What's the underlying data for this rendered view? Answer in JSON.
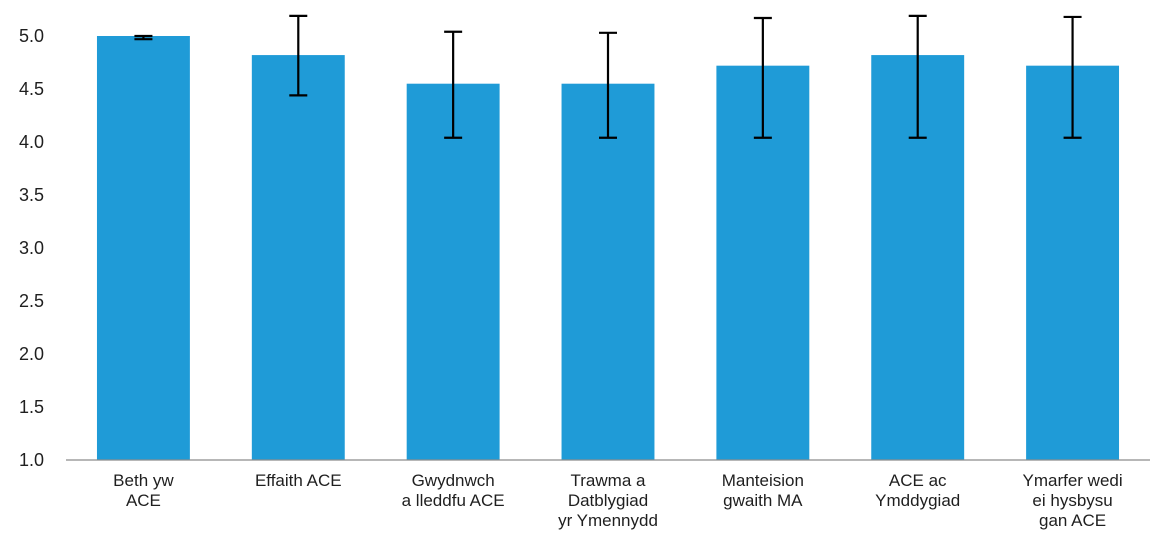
{
  "chart_data": {
    "type": "bar",
    "categories": [
      [
        "Beth yw",
        "ACE"
      ],
      [
        "Effaith ACE"
      ],
      [
        "Gwydnwch",
        "a lleddfu ACE"
      ],
      [
        "Trawma a",
        "Datblygiad",
        "yr Ymennydd"
      ],
      [
        "Manteision",
        "gwaith MA"
      ],
      [
        "ACE ac",
        "Ymddygiad"
      ],
      [
        "Ymarfer wedi",
        "ei hysbysu",
        "gan ACE"
      ]
    ],
    "values": [
      5.0,
      4.82,
      4.55,
      4.55,
      4.72,
      4.82,
      4.72
    ],
    "error_low": [
      4.97,
      4.44,
      4.04,
      4.04,
      4.04,
      4.04,
      4.04
    ],
    "error_high": [
      5.0,
      5.19,
      5.04,
      5.03,
      5.17,
      5.19,
      5.18
    ],
    "ylim": [
      1.0,
      5.0
    ],
    "yticks": [
      "1.0",
      "1.5",
      "2.0",
      "2.5",
      "3.0",
      "3.5",
      "4.0",
      "4.5",
      "5.0"
    ],
    "title": "",
    "xlabel": "",
    "ylabel": "",
    "bar_color": "#1f9bd7",
    "error_bar_color": "#000000",
    "grid": false,
    "legend": "none"
  }
}
